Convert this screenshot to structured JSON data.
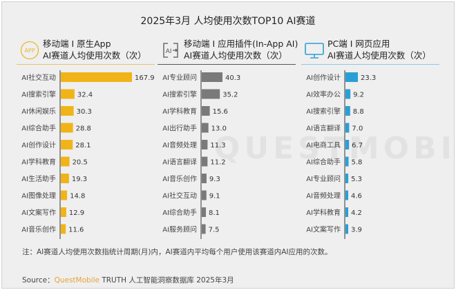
{
  "title": "2025年3月 人均使用次数TOP10 AI赛道",
  "watermark": "QUESTMOBILE",
  "panels": [
    {
      "line1": "移动端 I 原生App",
      "line2": "AI赛道人均使用次数（次）",
      "icon": "app-icon",
      "icon_text": "APP",
      "color": "#f0b418"
    },
    {
      "line1": "移动端 I 应用插件(In-App AI)",
      "line2": "AI赛道人均使用次数（次）",
      "icon": "ai-plugin-icon",
      "icon_text": "AI",
      "color": "#7a7a7a"
    },
    {
      "line1": "PC端 I 网页应用",
      "line2": "AI赛道人均使用次数（次）",
      "icon": "monitor-icon",
      "color": "#2a9fd6"
    }
  ],
  "chart_data": [
    {
      "type": "bar",
      "orientation": "horizontal",
      "categories": [
        "AI社交互动",
        "AI搜索引擎",
        "AI休闲娱乐",
        "AI综合助手",
        "AI创作设计",
        "AI学科教育",
        "AI生活助手",
        "AI图像处理",
        "AI文案写作",
        "AI音乐创作"
      ],
      "values": [
        167.9,
        32.4,
        30.3,
        28.8,
        28.1,
        20.5,
        19.3,
        14.8,
        12.9,
        11.6
      ],
      "color": "#f0b418"
    },
    {
      "type": "bar",
      "orientation": "horizontal",
      "categories": [
        "AI专业顾问",
        "AI搜索引擎",
        "AI学科教育",
        "AI出行助手",
        "AI音频处理",
        "AI语言翻译",
        "AI音乐创作",
        "AI社交互动",
        "AI综合助手",
        "AI服务顾问"
      ],
      "values": [
        40.3,
        35.2,
        15.6,
        13.0,
        11.3,
        11.2,
        9.3,
        9.1,
        8.1,
        7.5
      ],
      "color": "#7a7a7a"
    },
    {
      "type": "bar",
      "orientation": "horizontal",
      "categories": [
        "AI创作设计",
        "AI效率办公",
        "AI搜索引擎",
        "AI语言翻译",
        "AI电商工具",
        "AI综合助手",
        "AI专业顾问",
        "AI音频处理",
        "AI学科教育",
        "AI文案写作"
      ],
      "values": [
        23.3,
        9.2,
        8.8,
        7.0,
        6.7,
        5.8,
        5.3,
        4.6,
        4.2,
        3.9
      ],
      "color": "#2a9fd6"
    }
  ],
  "note": "注：AI赛道人均使用次数指统计周期(月)内，AI赛道内平均每个用户使用该赛道内AI应用的次数。",
  "source": {
    "label": "Source：",
    "brand": "QuestMobile",
    "rest": " TRUTH 人工智能洞察数据库 2025年3月"
  }
}
